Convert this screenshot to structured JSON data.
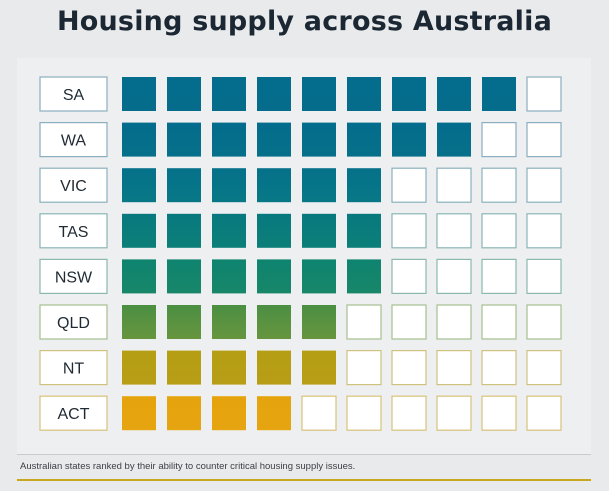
{
  "title": "Housing supply across Australia",
  "caption": "Australian states ranked by their ability to counter critical housing supply issues.",
  "chart_data": {
    "type": "table",
    "title": "Housing supply across Australia",
    "max_squares": 10,
    "categories": [
      "SA",
      "WA",
      "VIC",
      "TAS",
      "NSW",
      "QLD",
      "NT",
      "ACT"
    ],
    "values": [
      9,
      8,
      6,
      6,
      6,
      5,
      5,
      4
    ],
    "row_colors": [
      "#046c8c",
      "#046c8c",
      "#05718a",
      "#08797f",
      "#0e836f",
      "#4b8f43",
      "#b59e13",
      "#e5a40e"
    ],
    "row_colors_mid": [
      "#056c8b",
      "#06708a",
      "#087886",
      "#0d7f79",
      "#188769",
      "#67953e",
      "#b89d17",
      "#e6a410"
    ],
    "empty_border_colors": [
      "#8aaebf",
      "#8aaebf",
      "#8ab1bd",
      "#8ab6b6",
      "#8bb8ad",
      "#a6be8f",
      "#cfc27e",
      "#d8c27a"
    ]
  }
}
